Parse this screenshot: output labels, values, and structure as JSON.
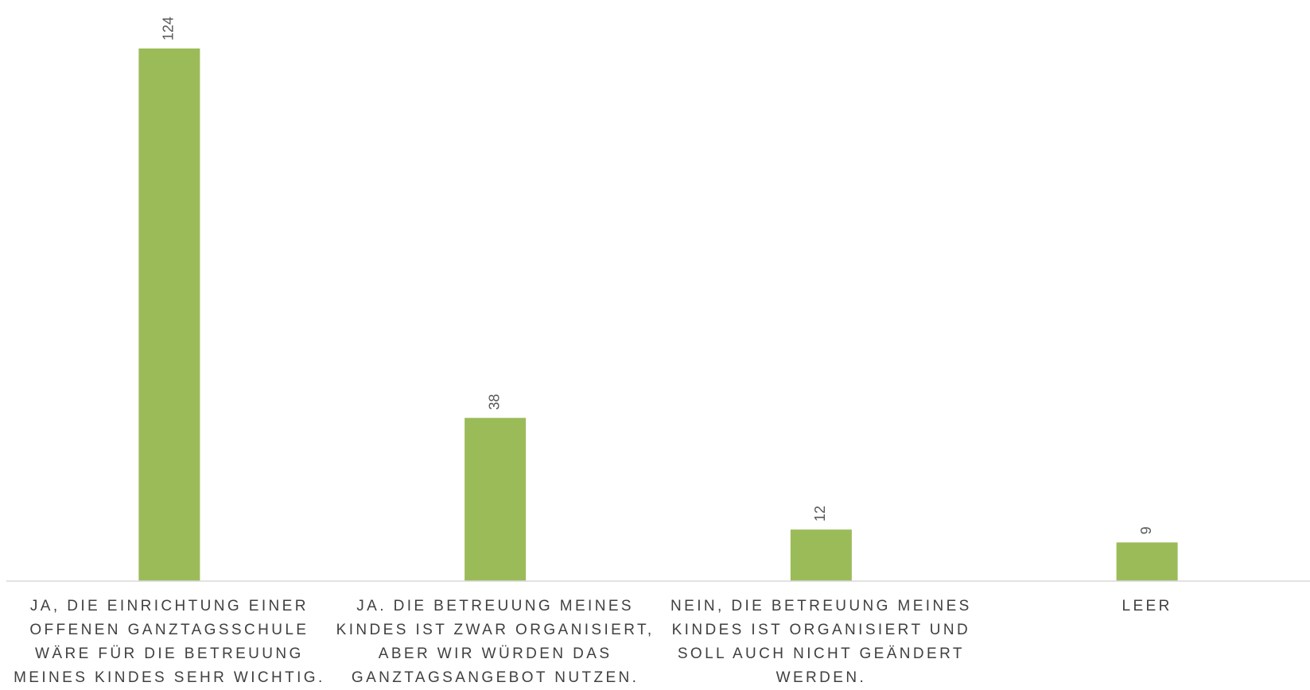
{
  "chart_data": {
    "type": "bar",
    "categories": [
      "JA, DIE EINRICHTUNG EINER OFFENEN GANZTAGSSCHULE WÄRE FÜR DIE BETREUUNG MEINES KINDES SEHR WICHTIG.",
      "JA. DIE BETREUUNG MEINES KINDES IST ZWAR ORGANISIERT, ABER WIR WÜRDEN DAS GANZTAGSANGEBOT NUTZEN.",
      "NEIN, DIE BETREUUNG MEINES KINDES IST ORGANISIERT UND SOLL AUCH NICHT GEÄNDERT WERDEN.",
      "LEER"
    ],
    "values": [
      124,
      38,
      12,
      9
    ],
    "color": "#9bbb59",
    "ylim": [
      0,
      124
    ],
    "grid": false
  }
}
